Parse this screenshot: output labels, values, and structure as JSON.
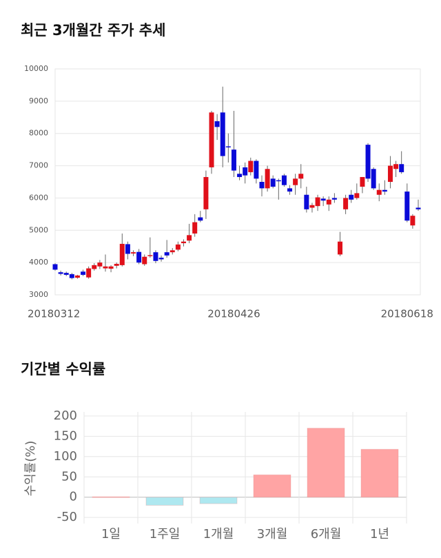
{
  "chart_data": [
    {
      "type": "candlestick",
      "title": "최근 3개월간 주가 추세",
      "categories": [
        "20180312",
        null,
        null,
        null,
        null,
        null,
        null,
        null,
        null,
        null,
        null,
        null,
        null,
        null,
        null,
        null,
        null,
        null,
        null,
        null,
        null,
        null,
        null,
        null,
        null,
        null,
        null,
        null,
        null,
        null,
        null,
        null,
        "20180426",
        null,
        null,
        null,
        null,
        null,
        null,
        null,
        null,
        null,
        null,
        null,
        null,
        null,
        null,
        null,
        null,
        null,
        null,
        null,
        null,
        null,
        null,
        null,
        null,
        null,
        null,
        null,
        null,
        null,
        null,
        "20180618",
        null,
        null
      ],
      "open": [
        3950,
        3700,
        3680,
        3640,
        3530,
        3720,
        3540,
        3800,
        3880,
        3820,
        3810,
        3900,
        3920,
        4570,
        4280,
        4330,
        3950,
        4200,
        4320,
        4150,
        4320,
        4320,
        4400,
        4600,
        4680,
        4900,
        5400,
        5650,
        6950,
        8380,
        8650,
        7600,
        7500,
        6750,
        6950,
        6800,
        7150,
        6500,
        6300,
        6600,
        6550,
        6700,
        6300,
        6400,
        6600,
        6100,
        5700,
        5750,
        5980,
        5800,
        6000,
        4250,
        5650,
        6100,
        6000,
        6350,
        7650,
        6900,
        6100,
        6250,
        6500,
        6900,
        7050,
        6200,
        5150,
        5700
      ],
      "high": [
        3980,
        3750,
        3720,
        3680,
        3620,
        3780,
        3880,
        3980,
        4080,
        4250,
        3920,
        4000,
        4900,
        4650,
        4380,
        4420,
        4250,
        4780,
        4380,
        4220,
        4700,
        4450,
        4650,
        4720,
        5200,
        5500,
        5600,
        6850,
        8700,
        8600,
        9450,
        8000,
        8700,
        7000,
        7100,
        7250,
        7200,
        6700,
        7000,
        6700,
        6600,
        6750,
        6400,
        6750,
        7050,
        6350,
        5850,
        6100,
        6050,
        6050,
        6150,
        4950,
        6100,
        6250,
        6450,
        6650,
        7700,
        6950,
        6450,
        6550,
        7300,
        7150,
        7450,
        6450,
        5500,
        5950
      ],
      "low": [
        3750,
        3600,
        3580,
        3480,
        3500,
        3580,
        3500,
        3750,
        3800,
        3720,
        3700,
        3820,
        3880,
        4100,
        4200,
        3950,
        3900,
        4150,
        3980,
        4030,
        4150,
        4250,
        4350,
        4500,
        4600,
        4800,
        5250,
        5350,
        6750,
        7800,
        6950,
        7100,
        6650,
        6550,
        6450,
        6700,
        6450,
        6050,
        6200,
        6300,
        5950,
        6350,
        6100,
        6100,
        6300,
        5550,
        5550,
        5600,
        5750,
        5600,
        5850,
        4200,
        5500,
        5850,
        5950,
        6150,
        6500,
        6250,
        5900,
        6100,
        6300,
        6650,
        6750,
        5250,
        5050,
        5600
      ],
      "close": [
        3780,
        3650,
        3620,
        3520,
        3600,
        3620,
        3820,
        3920,
        4000,
        3880,
        3880,
        3960,
        4580,
        4270,
        4320,
        4000,
        4180,
        4230,
        4050,
        4100,
        4220,
        4380,
        4560,
        4650,
        4850,
        5250,
        5300,
        6650,
        8650,
        8200,
        7300,
        7580,
        6850,
        6650,
        6700,
        7150,
        6600,
        6300,
        6900,
        6350,
        6530,
        6400,
        6200,
        6600,
        6750,
        5650,
        5780,
        6020,
        5920,
        5950,
        5950,
        4650,
        6000,
        5950,
        6150,
        6650,
        6600,
        6300,
        6250,
        6200,
        7000,
        7050,
        6800,
        5300,
        5450,
        5650
      ],
      "up_color": "#e0101a",
      "down_color": "#0a0ad8",
      "ylim": [
        3000,
        10000
      ],
      "yticks": [
        3000,
        4000,
        5000,
        6000,
        7000,
        8000,
        9000,
        10000
      ],
      "grid": true
    },
    {
      "type": "bar",
      "title": "기간별 수익률",
      "ylabel": "수익률(%)",
      "categories": [
        "1일",
        "1주일",
        "1개월",
        "3개월",
        "6개월",
        "1년"
      ],
      "values": [
        1,
        -20,
        -16,
        55,
        170,
        118
      ],
      "colors": [
        "#ffa4a4",
        "#aee8f0",
        "#aee8f0",
        "#ffa4a4",
        "#ffa4a4",
        "#ffa4a4"
      ],
      "ylim": [
        -65,
        210
      ],
      "yticks": [
        -50,
        0,
        50,
        100,
        150,
        200
      ],
      "grid": true
    }
  ]
}
